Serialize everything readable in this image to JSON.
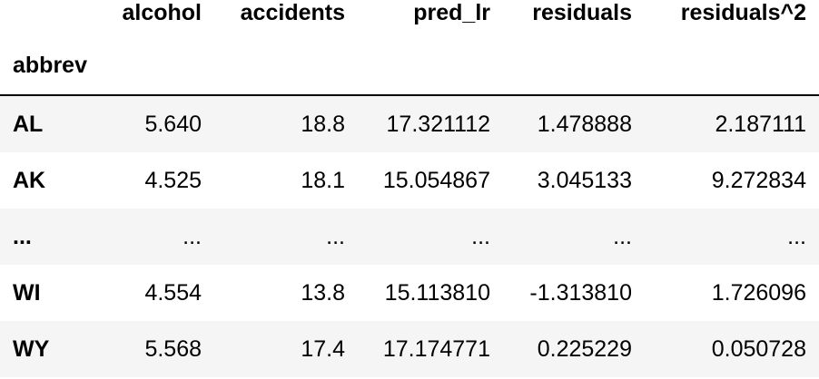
{
  "table": {
    "columns": [
      "alcohol",
      "accidents",
      "pred_lr",
      "residuals",
      "residuals^2"
    ],
    "index_name": "abbrev",
    "rows": [
      {
        "index": "AL",
        "values": [
          "5.640",
          "18.8",
          "17.321112",
          "1.478888",
          "2.187111"
        ]
      },
      {
        "index": "AK",
        "values": [
          "4.525",
          "18.1",
          "15.054867",
          "3.045133",
          "9.272834"
        ]
      },
      {
        "index": "...",
        "values": [
          "...",
          "...",
          "...",
          "...",
          "..."
        ]
      },
      {
        "index": "WI",
        "values": [
          "4.554",
          "13.8",
          "15.113810",
          "-1.313810",
          "1.726096"
        ]
      },
      {
        "index": "WY",
        "values": [
          "5.568",
          "17.4",
          "17.174771",
          "0.225229",
          "0.050728"
        ]
      }
    ],
    "stripe_color": "#f5f5f5",
    "rule_color": "#000000"
  }
}
